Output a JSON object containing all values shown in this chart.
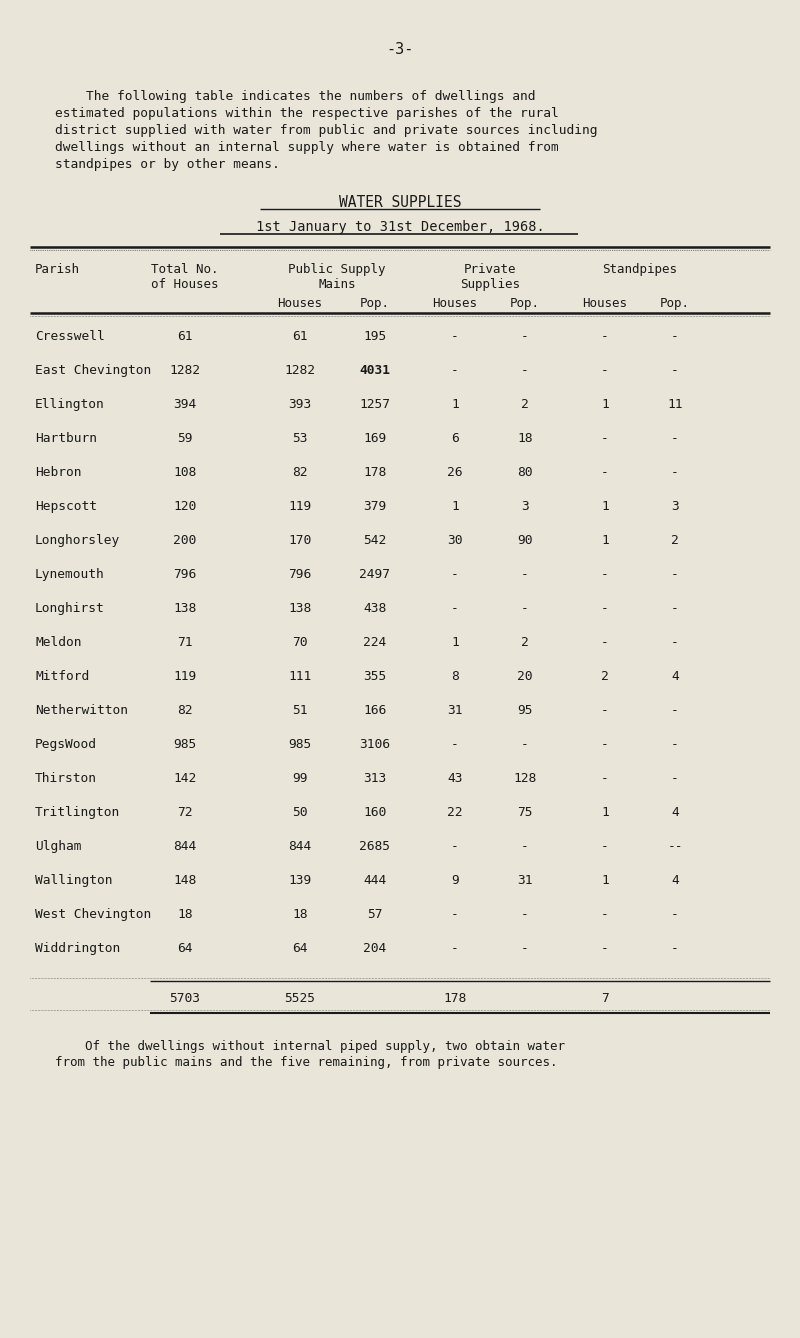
{
  "page_number": "-3-",
  "intro_text_line1": "    The following table indicates the numbers of dwellings and",
  "intro_text_line2": "estimated populations within the respective parishes of the rural",
  "intro_text_line3": "district supplied with water from public and private sources including",
  "intro_text_line4": "dwellings without an internal supply where water is obtained from",
  "intro_text_line5": "standpipes or by other means.",
  "title1": "WATER SUPPLIES",
  "title2": "1st January to 31st December, 1968.",
  "rows": [
    [
      "Cresswell",
      "61",
      "61",
      "195",
      "-",
      "-",
      "-",
      "-"
    ],
    [
      "East Chevington",
      "1282",
      "1282",
      "4031",
      "-",
      "-",
      "-",
      "-"
    ],
    [
      "Ellington",
      "394",
      "393",
      "1257",
      "1",
      "2",
      "1",
      "11"
    ],
    [
      "Hartburn",
      "59",
      "53",
      "169",
      "6",
      "18",
      "-",
      "-"
    ],
    [
      "Hebron",
      "108",
      "82",
      "178",
      "26",
      "80",
      "-",
      "-"
    ],
    [
      "Hepscott",
      "120",
      "119",
      "379",
      "1",
      "3",
      "1",
      "3"
    ],
    [
      "Longhorsley",
      "200",
      "170",
      "542",
      "30",
      "90",
      "1",
      "2"
    ],
    [
      "Lynemouth",
      "796",
      "796",
      "2497",
      "-",
      "-",
      "-",
      "-"
    ],
    [
      "Longhirst",
      "138",
      "138",
      "438",
      "-",
      "-",
      "-",
      "-"
    ],
    [
      "Meldon",
      "71",
      "70",
      "224",
      "1",
      "2",
      "-",
      "-"
    ],
    [
      "Mitford",
      "119",
      "111",
      "355",
      "8",
      "20",
      "2",
      "4"
    ],
    [
      "Netherwitton",
      "82",
      "51",
      "166",
      "31",
      "95",
      "-",
      "-"
    ],
    [
      "PegsWood",
      "985",
      "985",
      "3106",
      "-",
      "-",
      "-",
      "-"
    ],
    [
      "Thirston",
      "142",
      "99",
      "313",
      "43",
      "128",
      "-",
      "-"
    ],
    [
      "Tritlington",
      "72",
      "50",
      "160",
      "22",
      "75",
      "1",
      "4"
    ],
    [
      "Ulgham",
      "844",
      "844",
      "2685",
      "-",
      "-",
      "-",
      "--"
    ],
    [
      "Wallington",
      "148",
      "139",
      "444",
      "9",
      "31",
      "1",
      "4"
    ],
    [
      "West Chevington",
      "18",
      "18",
      "57",
      "-",
      "-",
      "-",
      "-"
    ],
    [
      "Widdrington",
      "64",
      "64",
      "204",
      "-",
      "-",
      "-",
      "-"
    ]
  ],
  "footer_text_line1": "    Of the dwellings without internal piped supply, two obtain water",
  "footer_text_line2": "from the public mains and the five remaining, from private sources.",
  "bg_color": "#e9e5d9",
  "text_color": "#1a1a1a"
}
